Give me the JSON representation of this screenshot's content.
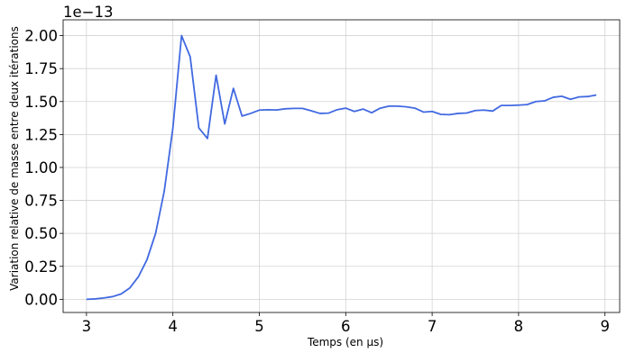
{
  "chart_data": {
    "type": "line",
    "xlabel": "Temps (en μs)",
    "ylabel": "Variation relative de masse entre deux itérations",
    "y_offset_label": "1e−13",
    "xlim": [
      2.73,
      9.17
    ],
    "ylim": [
      -0.1,
      2.12
    ],
    "x_ticks": [
      3,
      4,
      5,
      6,
      7,
      8,
      9
    ],
    "x_tick_labels": [
      "3",
      "4",
      "5",
      "6",
      "7",
      "8",
      "9"
    ],
    "y_ticks": [
      0,
      0.25,
      0.5,
      0.75,
      1.0,
      1.25,
      1.5,
      1.75,
      2.0
    ],
    "y_tick_labels": [
      "0.00",
      "0.25",
      "0.50",
      "0.75",
      "1.00",
      "1.25",
      "1.50",
      "1.75",
      "2.00"
    ],
    "grid": true,
    "line_color": "#4169e1",
    "x": [
      3.0,
      3.1,
      3.2,
      3.3,
      3.4,
      3.5,
      3.6,
      3.7,
      3.8,
      3.9,
      4.0,
      4.1,
      4.2,
      4.3,
      4.4,
      4.5,
      4.6,
      4.7,
      4.8,
      4.9,
      5.0,
      5.1,
      5.2,
      5.3,
      5.4,
      5.5,
      5.6,
      5.7,
      5.8,
      5.9,
      6.0,
      6.1,
      6.2,
      6.3,
      6.4,
      6.5,
      6.6,
      6.7,
      6.8,
      6.9,
      7.0,
      7.1,
      7.2,
      7.3,
      7.4,
      7.5,
      7.6,
      7.7,
      7.8,
      7.9,
      8.0,
      8.1,
      8.2,
      8.3,
      8.4,
      8.5,
      8.6,
      8.7,
      8.8,
      8.9
    ],
    "y": [
      0.0,
      0.003,
      0.01,
      0.02,
      0.04,
      0.085,
      0.17,
      0.3,
      0.5,
      0.82,
      1.3,
      2.0,
      1.84,
      1.3,
      1.22,
      1.7,
      1.33,
      1.6,
      1.39,
      1.41,
      1.435,
      1.438,
      1.436,
      1.445,
      1.448,
      1.448,
      1.43,
      1.41,
      1.412,
      1.438,
      1.45,
      1.425,
      1.443,
      1.415,
      1.45,
      1.465,
      1.465,
      1.46,
      1.45,
      1.42,
      1.425,
      1.403,
      1.4,
      1.41,
      1.413,
      1.432,
      1.435,
      1.428,
      1.47,
      1.47,
      1.473,
      1.477,
      1.5,
      1.505,
      1.532,
      1.54,
      1.517,
      1.535,
      1.538,
      1.55
    ]
  }
}
